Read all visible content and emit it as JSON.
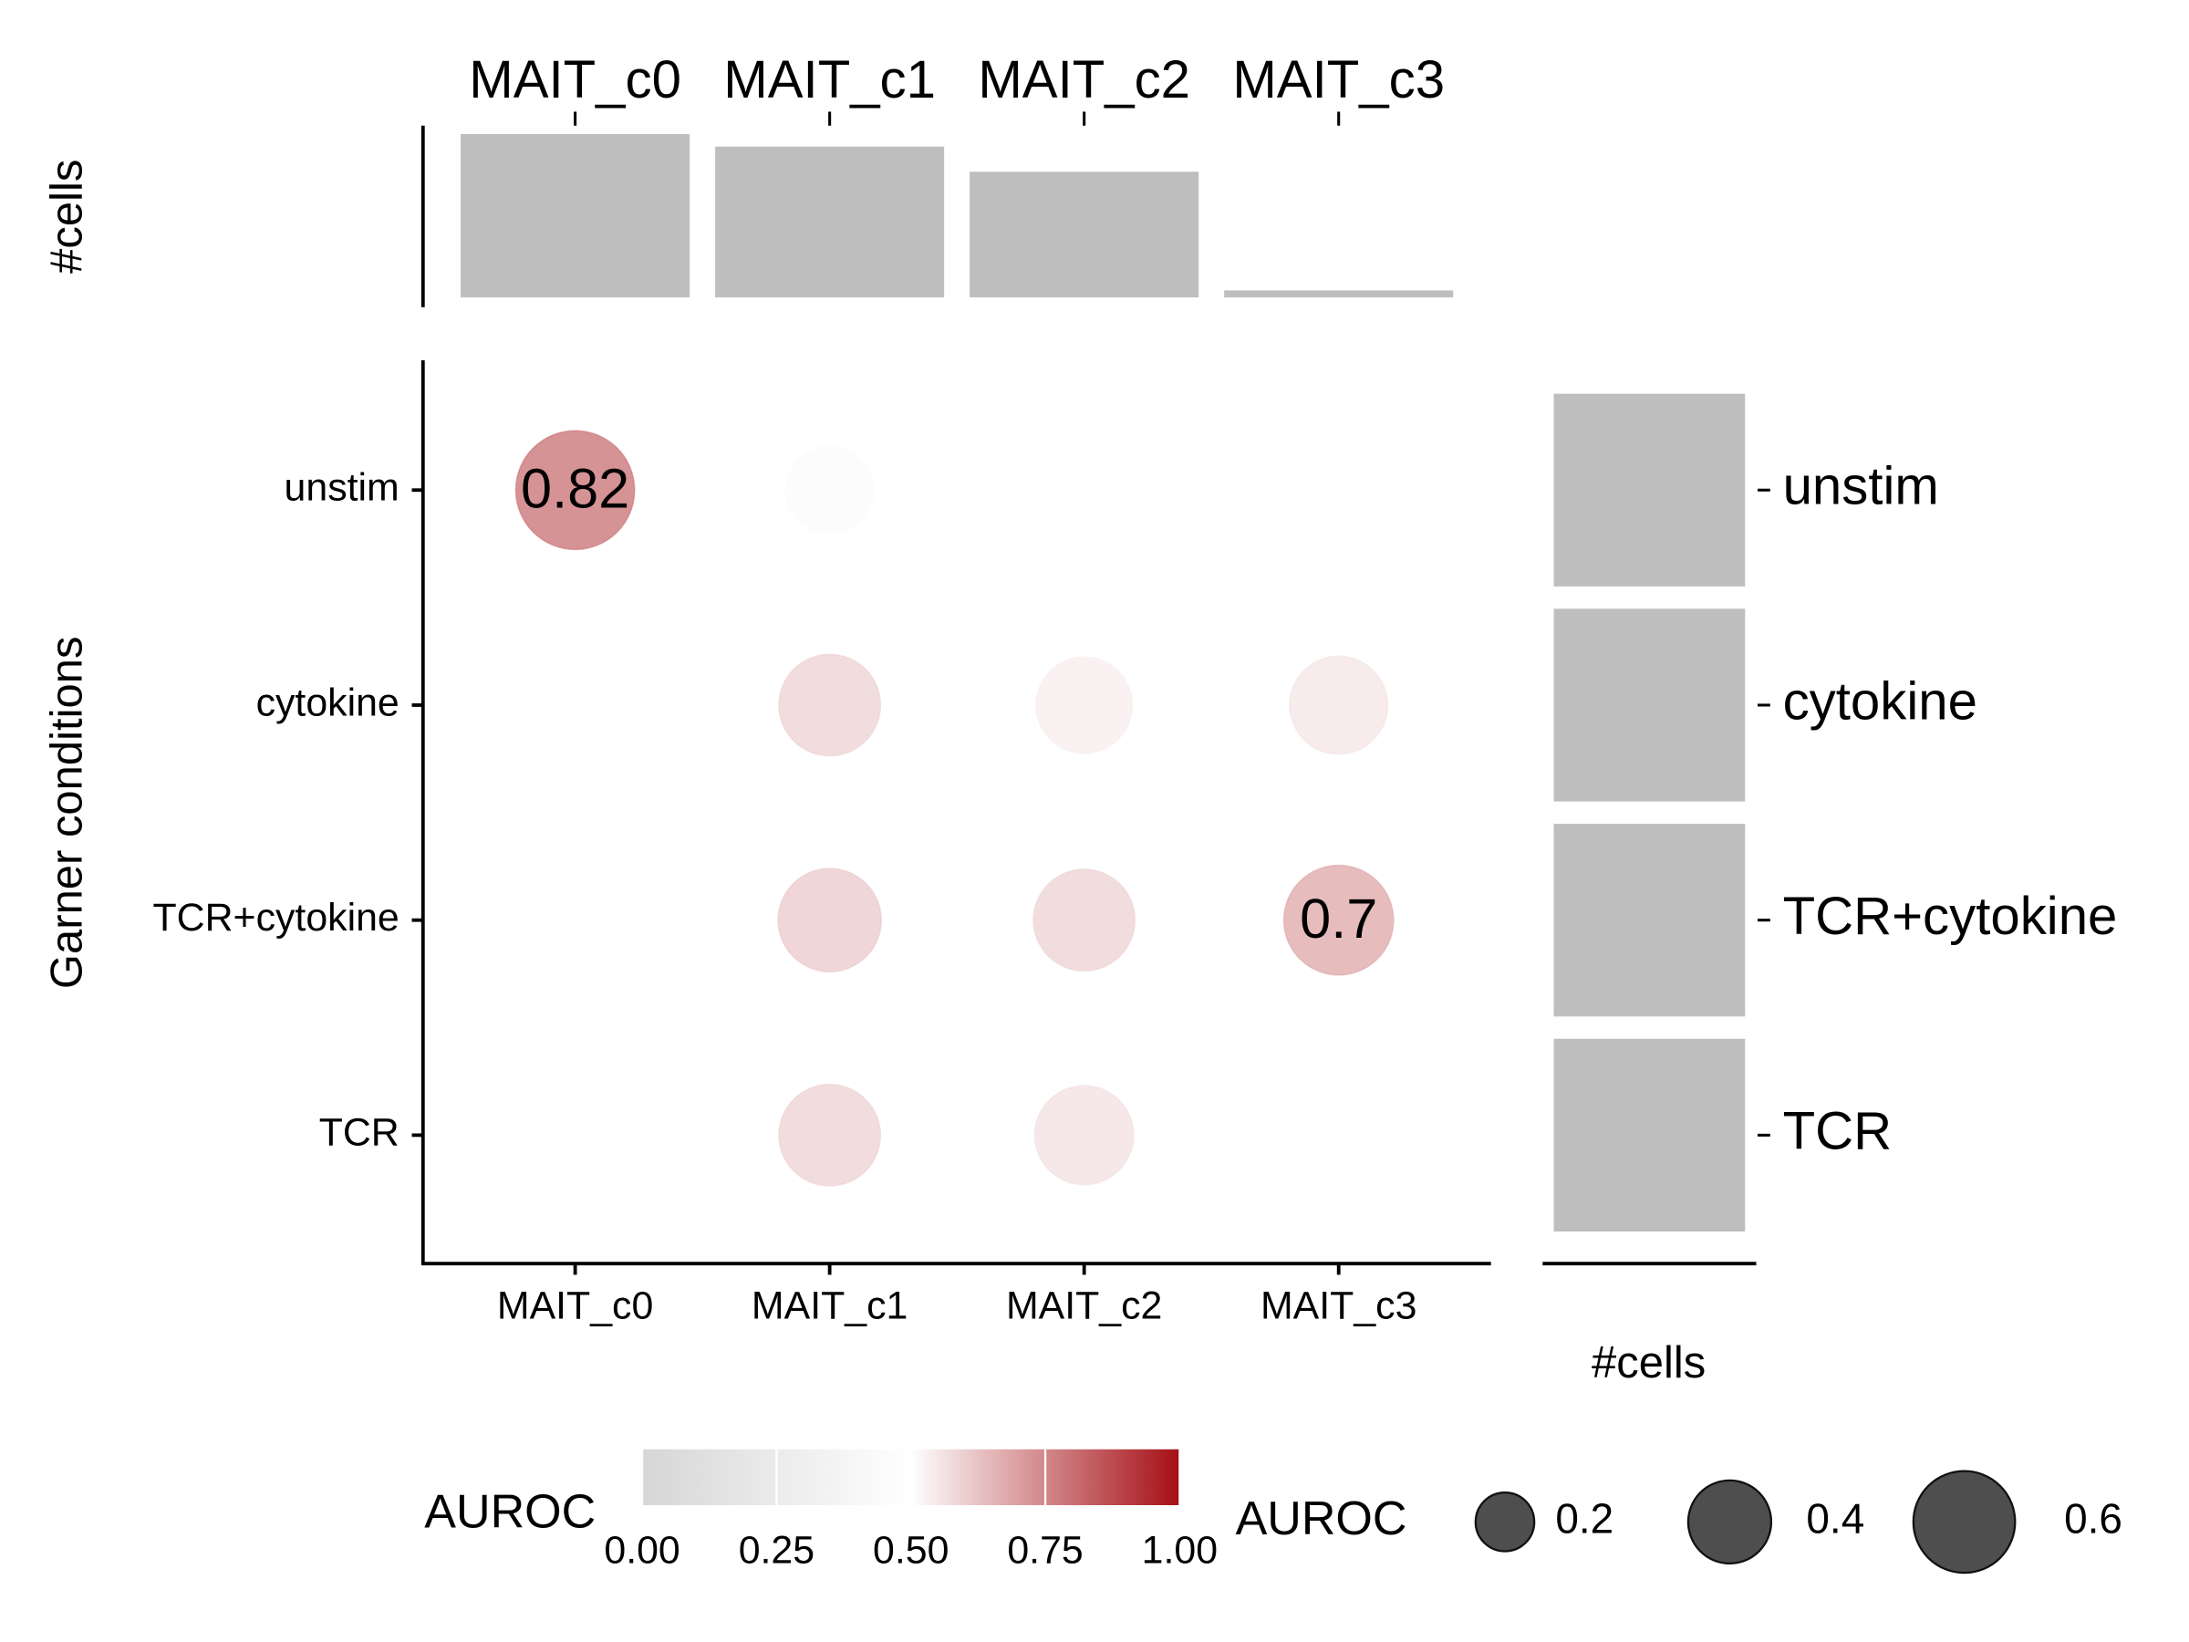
{
  "chart_data": {
    "type": "dot",
    "x_categories": [
      "MAIT_c0",
      "MAIT_c1",
      "MAIT_c2",
      "MAIT_c3"
    ],
    "y_categories": [
      "unstim",
      "cytokine",
      "TCR+cytokine",
      "TCR"
    ],
    "ylabel": "Garner conditions",
    "values": [
      [
        0.82,
        0.45,
        0.48,
        0.48
      ],
      [
        0.49,
        0.6,
        0.54,
        0.56
      ],
      [
        0.47,
        0.62,
        0.6,
        0.7
      ],
      [
        0.48,
        0.6,
        0.57,
        0.5
      ]
    ],
    "value_labels": [
      [
        "0.82",
        null,
        null,
        null
      ],
      [
        null,
        null,
        null,
        null
      ],
      [
        null,
        null,
        null,
        "0.7"
      ],
      [
        null,
        null,
        null,
        null
      ]
    ],
    "color_scale": {
      "title": "AUROC",
      "low": "#d6d6d6",
      "mid": "#ffffff",
      "high": "#a50f15",
      "lim": [
        0,
        1
      ],
      "ticks": [
        {
          "value": 0,
          "label": "0.00"
        },
        {
          "value": 0.25,
          "label": "0.25"
        },
        {
          "value": 0.5,
          "label": "0.50"
        },
        {
          "value": 0.75,
          "label": "0.75"
        },
        {
          "value": 1,
          "label": "1.00"
        }
      ]
    },
    "size_legend": {
      "title": "AUROC",
      "values": [
        0.2,
        0.4,
        0.6
      ],
      "color": "#444444"
    },
    "top_bars": {
      "label": "#cells",
      "values": [
        117,
        108,
        90,
        5
      ]
    },
    "right_bars": {
      "label": "#cells",
      "values": [
        137,
        137,
        137,
        137
      ]
    },
    "bar_color": "#bebebe"
  }
}
